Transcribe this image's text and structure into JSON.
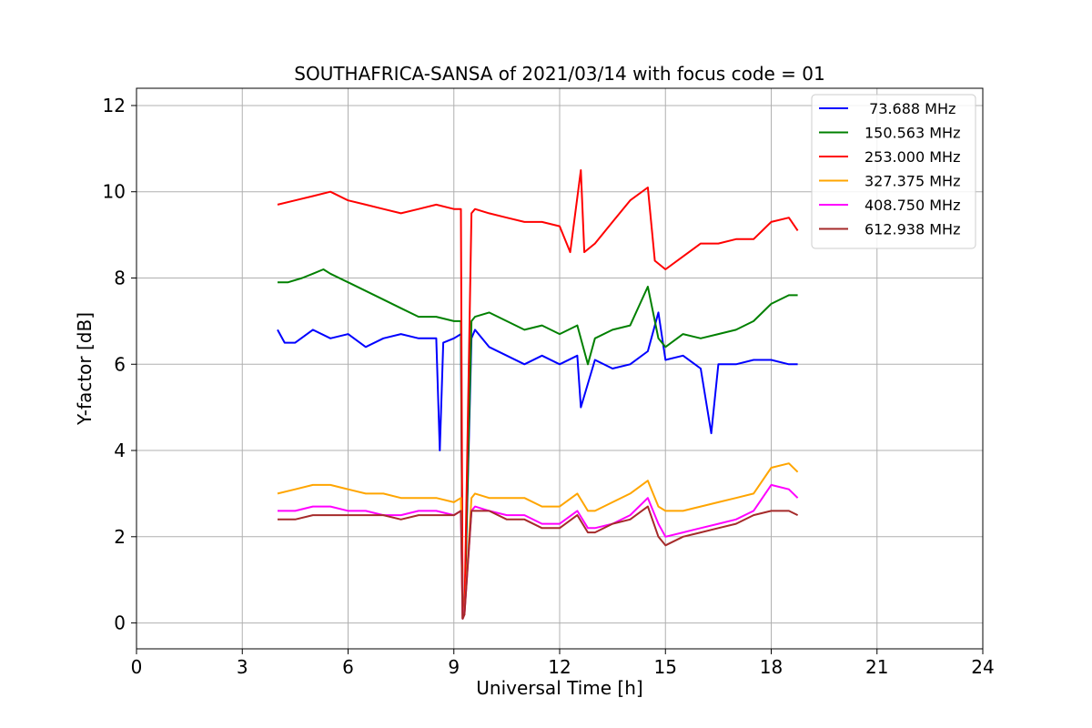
{
  "chart_data": {
    "type": "line",
    "title": "SOUTHAFRICA-SANSA of 2021/03/14 with focus code = 01",
    "xlabel": "Universal Time [h]",
    "ylabel": "Y-factor [dB]",
    "xlim": [
      0,
      24
    ],
    "ylim": [
      -0.6,
      12.4
    ],
    "xticks": [
      0,
      3,
      6,
      9,
      12,
      15,
      18,
      21,
      24
    ],
    "yticks": [
      0,
      2,
      4,
      6,
      8,
      10,
      12
    ],
    "xtick_labels": [
      "0",
      "3",
      "6",
      "9",
      "12",
      "15",
      "18",
      "21",
      "24"
    ],
    "ytick_labels": [
      "0",
      "2",
      "4",
      "6",
      "8",
      "10",
      "12"
    ],
    "grid": true,
    "legend_position": "top-right",
    "series": [
      {
        "name": " 73.688 MHz",
        "color": "#0000ff",
        "x": [
          4.0,
          4.2,
          4.5,
          5.0,
          5.5,
          6.0,
          6.5,
          7.0,
          7.5,
          8.0,
          8.5,
          8.6,
          8.7,
          9.0,
          9.2,
          9.25,
          9.3,
          9.5,
          9.6,
          10.0,
          10.5,
          11.0,
          11.5,
          12.0,
          12.5,
          12.6,
          13.0,
          13.5,
          14.0,
          14.5,
          14.8,
          15.0,
          15.5,
          16.0,
          16.3,
          16.5,
          17.0,
          17.5,
          18.0,
          18.5,
          18.75
        ],
        "y": [
          6.8,
          6.5,
          6.5,
          6.8,
          6.6,
          6.7,
          6.4,
          6.6,
          6.7,
          6.6,
          6.6,
          4.0,
          6.5,
          6.6,
          6.7,
          0.1,
          0.2,
          6.6,
          6.8,
          6.4,
          6.2,
          6.0,
          6.2,
          6.0,
          6.2,
          5.0,
          6.1,
          5.9,
          6.0,
          6.3,
          7.2,
          6.1,
          6.2,
          5.9,
          4.4,
          6.0,
          6.0,
          6.1,
          6.1,
          6.0,
          6.0
        ]
      },
      {
        "name": "150.563 MHz",
        "color": "#008000",
        "x": [
          4.0,
          4.3,
          4.7,
          5.0,
          5.3,
          5.5,
          6.0,
          6.5,
          7.0,
          7.5,
          8.0,
          8.5,
          9.0,
          9.2,
          9.25,
          9.3,
          9.5,
          9.6,
          10.0,
          10.5,
          11.0,
          11.5,
          12.0,
          12.5,
          12.8,
          13.0,
          13.5,
          14.0,
          14.5,
          14.8,
          15.0,
          15.5,
          16.0,
          16.5,
          17.0,
          17.5,
          18.0,
          18.5,
          18.75
        ],
        "y": [
          7.9,
          7.9,
          8.0,
          8.1,
          8.2,
          8.1,
          7.9,
          7.7,
          7.5,
          7.3,
          7.1,
          7.1,
          7.0,
          7.0,
          0.1,
          0.2,
          7.0,
          7.1,
          7.2,
          7.0,
          6.8,
          6.9,
          6.7,
          6.9,
          6.0,
          6.6,
          6.8,
          6.9,
          7.8,
          6.6,
          6.4,
          6.7,
          6.6,
          6.7,
          6.8,
          7.0,
          7.4,
          7.6,
          7.6
        ]
      },
      {
        "name": "253.000 MHz",
        "color": "#ff0000",
        "x": [
          4.0,
          4.5,
          5.0,
          5.5,
          6.0,
          6.5,
          7.0,
          7.5,
          8.0,
          8.5,
          9.0,
          9.2,
          9.25,
          9.3,
          9.5,
          9.6,
          10.0,
          10.5,
          11.0,
          11.5,
          12.0,
          12.3,
          12.6,
          12.7,
          13.0,
          13.5,
          14.0,
          14.5,
          14.7,
          15.0,
          15.5,
          16.0,
          16.5,
          17.0,
          17.5,
          18.0,
          18.5,
          18.75
        ],
        "y": [
          9.7,
          9.8,
          9.9,
          10.0,
          9.8,
          9.7,
          9.6,
          9.5,
          9.6,
          9.7,
          9.6,
          9.6,
          0.1,
          0.2,
          9.5,
          9.6,
          9.5,
          9.4,
          9.3,
          9.3,
          9.2,
          8.6,
          10.5,
          8.6,
          8.8,
          9.3,
          9.8,
          10.1,
          8.4,
          8.2,
          8.5,
          8.8,
          8.8,
          8.9,
          8.9,
          9.3,
          9.4,
          9.1
        ]
      },
      {
        "name": "327.375 MHz",
        "color": "#ffa500",
        "x": [
          4.0,
          4.5,
          5.0,
          5.5,
          6.0,
          6.5,
          7.0,
          7.5,
          8.0,
          8.5,
          9.0,
          9.2,
          9.25,
          9.3,
          9.5,
          9.6,
          10.0,
          10.5,
          11.0,
          11.5,
          12.0,
          12.5,
          12.8,
          13.0,
          13.5,
          14.0,
          14.5,
          14.8,
          15.0,
          15.5,
          16.0,
          16.5,
          17.0,
          17.5,
          18.0,
          18.5,
          18.75
        ],
        "y": [
          3.0,
          3.1,
          3.2,
          3.2,
          3.1,
          3.0,
          3.0,
          2.9,
          2.9,
          2.9,
          2.8,
          2.9,
          0.1,
          0.2,
          2.9,
          3.0,
          2.9,
          2.9,
          2.9,
          2.7,
          2.7,
          3.0,
          2.6,
          2.6,
          2.8,
          3.0,
          3.3,
          2.7,
          2.6,
          2.6,
          2.7,
          2.8,
          2.9,
          3.0,
          3.6,
          3.7,
          3.5
        ]
      },
      {
        "name": "408.750 MHz",
        "color": "#ff00ff",
        "x": [
          4.0,
          4.5,
          5.0,
          5.5,
          6.0,
          6.5,
          7.0,
          7.5,
          8.0,
          8.5,
          9.0,
          9.2,
          9.25,
          9.3,
          9.5,
          9.6,
          10.0,
          10.5,
          11.0,
          11.5,
          12.0,
          12.5,
          12.8,
          13.0,
          13.5,
          14.0,
          14.5,
          14.8,
          15.0,
          15.5,
          16.0,
          16.5,
          17.0,
          17.5,
          18.0,
          18.5,
          18.75
        ],
        "y": [
          2.6,
          2.6,
          2.7,
          2.7,
          2.6,
          2.6,
          2.5,
          2.5,
          2.6,
          2.6,
          2.5,
          2.6,
          0.1,
          0.2,
          2.6,
          2.7,
          2.6,
          2.5,
          2.5,
          2.3,
          2.3,
          2.6,
          2.2,
          2.2,
          2.3,
          2.5,
          2.9,
          2.3,
          2.0,
          2.1,
          2.2,
          2.3,
          2.4,
          2.6,
          3.2,
          3.1,
          2.9
        ]
      },
      {
        "name": "612.938 MHz",
        "color": "#a52a2a",
        "x": [
          4.0,
          4.5,
          5.0,
          5.5,
          6.0,
          6.5,
          7.0,
          7.5,
          8.0,
          8.5,
          9.0,
          9.2,
          9.25,
          9.3,
          9.5,
          9.6,
          10.0,
          10.5,
          11.0,
          11.5,
          12.0,
          12.5,
          12.8,
          13.0,
          13.5,
          14.0,
          14.5,
          14.8,
          15.0,
          15.5,
          16.0,
          16.5,
          17.0,
          17.5,
          18.0,
          18.5,
          18.75
        ],
        "y": [
          2.4,
          2.4,
          2.5,
          2.5,
          2.5,
          2.5,
          2.5,
          2.4,
          2.5,
          2.5,
          2.5,
          2.6,
          0.1,
          0.2,
          2.6,
          2.6,
          2.6,
          2.4,
          2.4,
          2.2,
          2.2,
          2.5,
          2.1,
          2.1,
          2.3,
          2.4,
          2.7,
          2.0,
          1.8,
          2.0,
          2.1,
          2.2,
          2.3,
          2.5,
          2.6,
          2.6,
          2.5
        ]
      }
    ]
  }
}
